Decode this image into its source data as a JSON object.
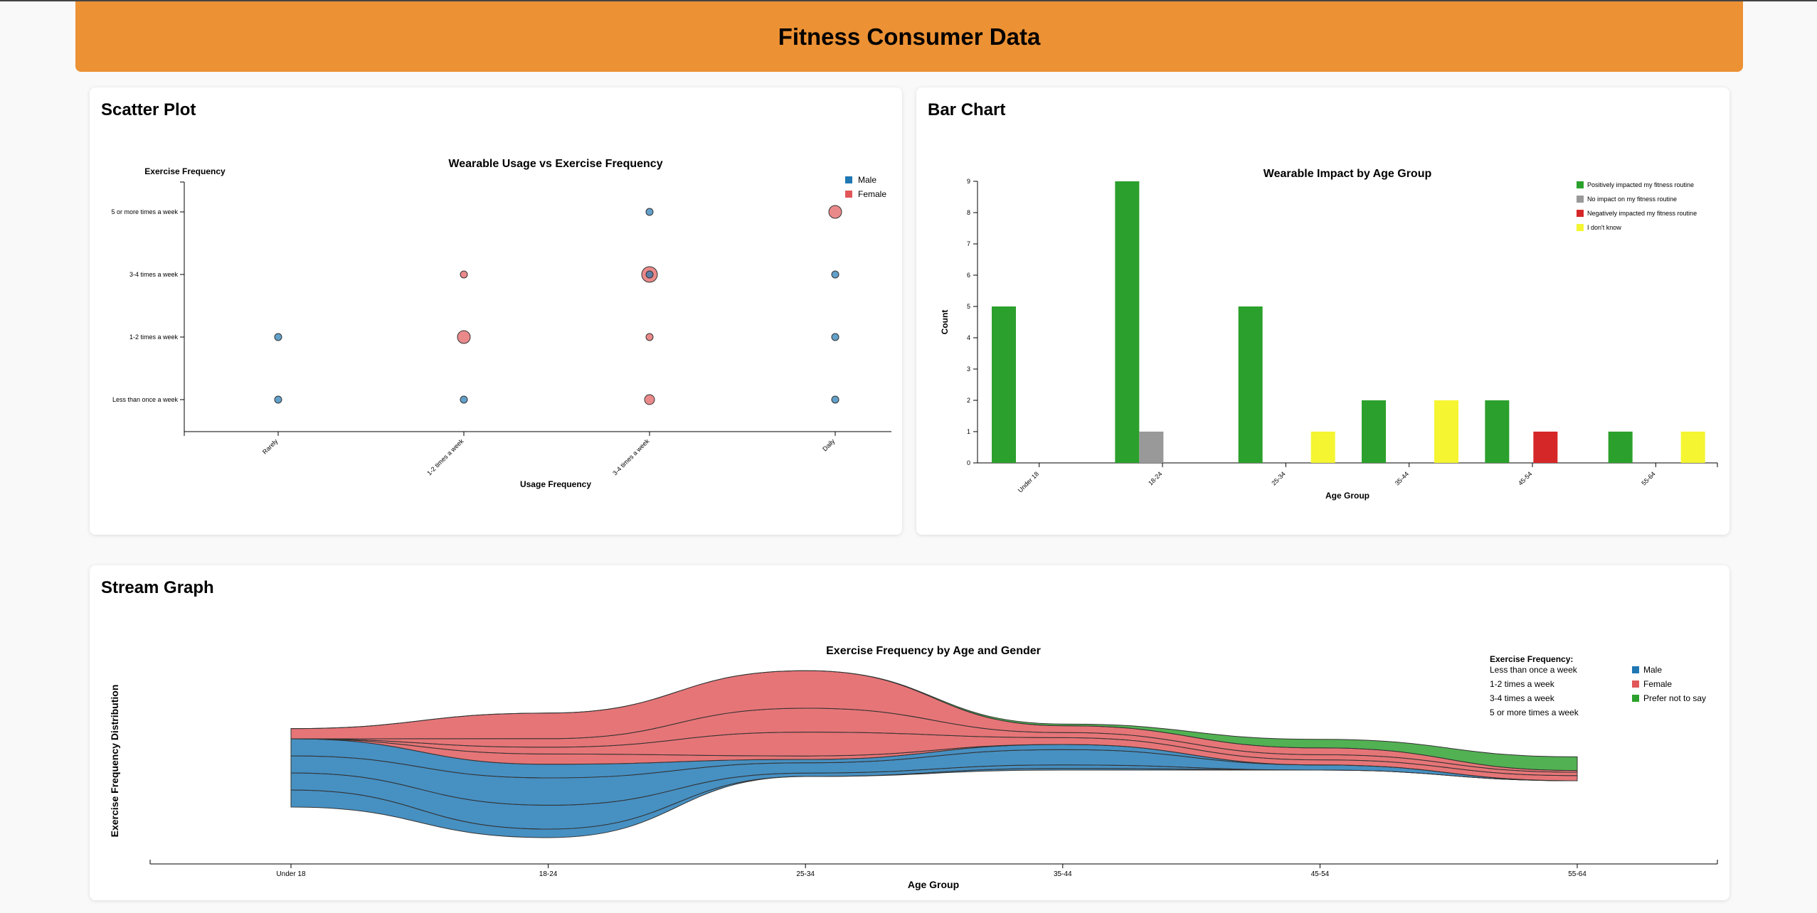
{
  "header": {
    "title": "Fitness Consumer Data"
  },
  "scatter": {
    "section_title": "Scatter Plot",
    "colors": {
      "Male": "#1f77b4",
      "Female": "#e15759"
    },
    "chart_data": {
      "type": "scatter",
      "title": "Wearable Usage vs Exercise Frequency",
      "xlabel": "Usage Frequency",
      "ylabel": "Exercise Frequency",
      "x_categories": [
        "Rarely",
        "1-2 times a week",
        "3-4 times a week",
        "Daily"
      ],
      "y_categories": [
        "Less than once a week",
        "1-2 times a week",
        "3-4 times a week",
        "5 or more times a week"
      ],
      "legend": [
        "Male",
        "Female"
      ],
      "points": [
        {
          "x": "Rarely",
          "y": "Less than once a week",
          "gender": "Male",
          "count": 1
        },
        {
          "x": "Rarely",
          "y": "1-2 times a week",
          "gender": "Male",
          "count": 1
        },
        {
          "x": "1-2 times a week",
          "y": "Less than once a week",
          "gender": "Male",
          "count": 1
        },
        {
          "x": "1-2 times a week",
          "y": "1-2 times a week",
          "gender": "Female",
          "count": 3
        },
        {
          "x": "1-2 times a week",
          "y": "3-4 times a week",
          "gender": "Female",
          "count": 1
        },
        {
          "x": "3-4 times a week",
          "y": "Less than once a week",
          "gender": "Female",
          "count": 2
        },
        {
          "x": "3-4 times a week",
          "y": "1-2 times a week",
          "gender": "Female",
          "count": 1
        },
        {
          "x": "3-4 times a week",
          "y": "3-4 times a week",
          "gender": "Female",
          "count": 4
        },
        {
          "x": "3-4 times a week",
          "y": "3-4 times a week",
          "gender": "Male",
          "count": 1
        },
        {
          "x": "3-4 times a week",
          "y": "5 or more times a week",
          "gender": "Male",
          "count": 1
        },
        {
          "x": "Daily",
          "y": "Less than once a week",
          "gender": "Male",
          "count": 1
        },
        {
          "x": "Daily",
          "y": "1-2 times a week",
          "gender": "Male",
          "count": 1
        },
        {
          "x": "Daily",
          "y": "3-4 times a week",
          "gender": "Male",
          "count": 1
        },
        {
          "x": "Daily",
          "y": "5 or more times a week",
          "gender": "Female",
          "count": 3
        }
      ]
    }
  },
  "bar": {
    "section_title": "Bar Chart",
    "chart_data": {
      "type": "bar",
      "title": "Wearable Impact by Age Group",
      "xlabel": "Age Group",
      "ylabel": "Count",
      "ylim": [
        0,
        9
      ],
      "yticks": [
        0,
        1,
        2,
        3,
        4,
        5,
        6,
        7,
        8,
        9
      ],
      "categories": [
        "Under 18",
        "18-24",
        "25-34",
        "35-44",
        "45-54",
        "55-64"
      ],
      "series": [
        {
          "name": "Positively impacted my fitness routine",
          "color": "#2ca02c",
          "values": [
            5,
            9,
            5,
            2,
            2,
            1
          ]
        },
        {
          "name": "No impact on my fitness routine",
          "color": "#999999",
          "values": [
            0,
            1,
            0,
            0,
            0,
            0
          ]
        },
        {
          "name": "Negatively impacted my fitness routine",
          "color": "#d62728",
          "values": [
            0,
            0,
            0,
            0,
            1,
            0
          ]
        },
        {
          "name": "I don't know",
          "color": "#f5f532",
          "values": [
            0,
            0,
            1,
            2,
            0,
            1
          ]
        }
      ]
    }
  },
  "stream": {
    "section_title": "Stream Graph",
    "legend_title": "Exercise Frequency:",
    "chart_data": {
      "type": "area",
      "title": "Exercise Frequency by Age and Gender",
      "xlabel": "Age Group",
      "ylabel": "Exercise Frequency Distribution",
      "categories": [
        "Under 18",
        "18-24",
        "25-34",
        "35-44",
        "45-54",
        "55-64"
      ],
      "frequency_levels": [
        "Less than once a week",
        "1-2 times a week",
        "3-4 times a week",
        "5 or more times a week"
      ],
      "gender_legend": [
        {
          "name": "Male",
          "color": "#1f77b4"
        },
        {
          "name": "Female",
          "color": "#e15759"
        },
        {
          "name": "Prefer not to say",
          "color": "#2ca02c"
        }
      ],
      "series": [
        {
          "gender": "Male",
          "frequency": "Less than once a week",
          "values": [
            1.0,
            0.5,
            0.0,
            0.1,
            0.0,
            0.0
          ]
        },
        {
          "gender": "Male",
          "frequency": "1-2 times a week",
          "values": [
            1.0,
            1.4,
            0.2,
            0.2,
            0.0,
            0.0
          ]
        },
        {
          "gender": "Male",
          "frequency": "3-4 times a week",
          "values": [
            1.0,
            1.6,
            0.6,
            0.9,
            0.3,
            0.0
          ]
        },
        {
          "gender": "Male",
          "frequency": "5 or more times a week",
          "values": [
            1.0,
            0.8,
            0.2,
            0.3,
            0.0,
            0.0
          ]
        },
        {
          "gender": "Female",
          "frequency": "Less than once a week",
          "values": [
            0.0,
            0.6,
            0.2,
            0.0,
            0.0,
            0.0
          ]
        },
        {
          "gender": "Female",
          "frequency": "1-2 times a week",
          "values": [
            0.0,
            0.4,
            1.4,
            0.4,
            0.3,
            0.3
          ]
        },
        {
          "gender": "Female",
          "frequency": "3-4 times a week",
          "values": [
            0.0,
            0.5,
            1.4,
            0.3,
            0.3,
            0.2
          ]
        },
        {
          "gender": "Female",
          "frequency": "5 or more times a week",
          "values": [
            0.6,
            1.5,
            2.2,
            0.4,
            0.4,
            0.1
          ]
        },
        {
          "gender": "Prefer not to say",
          "frequency": "1-2 times a week",
          "values": [
            0.0,
            0.0,
            0.0,
            0.1,
            0.5,
            0.8
          ]
        }
      ]
    }
  }
}
